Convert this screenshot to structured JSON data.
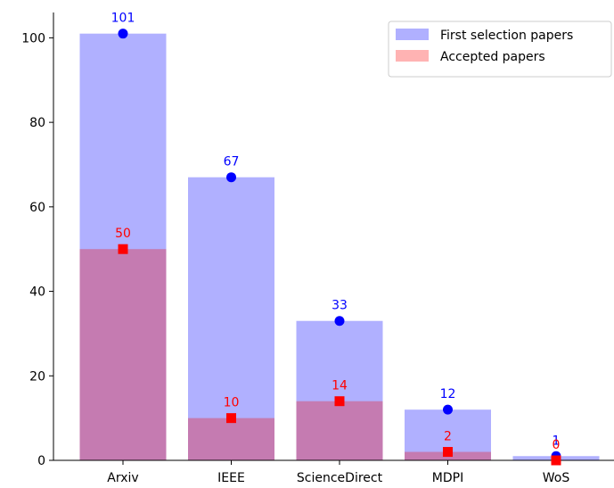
{
  "chart_data": {
    "type": "bar",
    "title": "",
    "xlabel": "",
    "ylabel": "",
    "ylim": [
      0,
      106
    ],
    "yticks": [
      0,
      20,
      40,
      60,
      80,
      100
    ],
    "grid": false,
    "legend_position": "top-right",
    "categories": [
      "Arxiv",
      "IEEE",
      "ScienceDirect",
      "MDPI",
      "WoS"
    ],
    "series": [
      {
        "name": "First selection papers",
        "values": [
          101,
          67,
          33,
          12,
          1
        ],
        "bar_color": "#b0b0ff",
        "marker": "circle",
        "marker_color": "#0000ff",
        "label_color": "#0000ff"
      },
      {
        "name": "Accepted papers",
        "values": [
          50,
          10,
          14,
          2,
          0
        ],
        "bar_color": "#c57bb1",
        "legend_color": "#ffb3b3",
        "marker": "square",
        "marker_color": "#ff0000",
        "label_color": "#ff0000"
      }
    ]
  }
}
